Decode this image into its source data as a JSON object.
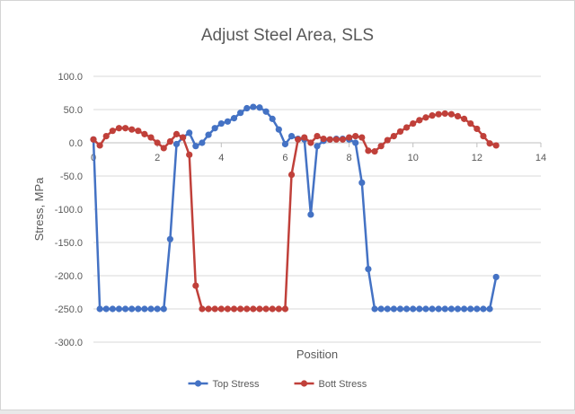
{
  "chart_data": {
    "type": "line",
    "title": "Adjust Steel Area, SLS",
    "xlabel": "Position",
    "ylabel": "Stress, MPa",
    "xlim": [
      0,
      14
    ],
    "ylim": [
      -300,
      100
    ],
    "xticks": [
      0,
      2,
      4,
      6,
      8,
      10,
      12,
      14
    ],
    "yticks": [
      100,
      50,
      0,
      -50,
      -100,
      -150,
      -200,
      -250,
      -300
    ],
    "ytick_labels": [
      "100.0",
      "50.0",
      "0.0",
      "-50.0",
      "-100.0",
      "-150.0",
      "-200.0",
      "-250.0",
      "-300.0"
    ],
    "grid": "horizontal",
    "legend": "bottom",
    "series": [
      {
        "name": "Top Stress",
        "color": "#4472c4",
        "points": [
          [
            0,
            5
          ],
          [
            0.2,
            -250
          ],
          [
            0.4,
            -250
          ],
          [
            0.6,
            -250
          ],
          [
            0.8,
            -250
          ],
          [
            1.0,
            -250
          ],
          [
            1.2,
            -250
          ],
          [
            1.4,
            -250
          ],
          [
            1.6,
            -250
          ],
          [
            1.8,
            -250
          ],
          [
            2.0,
            -250
          ],
          [
            2.2,
            -250
          ],
          [
            2.4,
            -145
          ],
          [
            2.6,
            -2
          ],
          [
            2.8,
            8
          ],
          [
            3.0,
            15
          ],
          [
            3.2,
            -5
          ],
          [
            3.4,
            0
          ],
          [
            3.6,
            12
          ],
          [
            3.8,
            22
          ],
          [
            4.0,
            29
          ],
          [
            4.2,
            32
          ],
          [
            4.4,
            37
          ],
          [
            4.6,
            45
          ],
          [
            4.8,
            52
          ],
          [
            5.0,
            54
          ],
          [
            5.2,
            53
          ],
          [
            5.4,
            47
          ],
          [
            5.6,
            36
          ],
          [
            5.8,
            20
          ],
          [
            6.0,
            -2
          ],
          [
            6.2,
            10
          ],
          [
            6.4,
            6
          ],
          [
            6.6,
            5
          ],
          [
            6.8,
            -108
          ],
          [
            7.0,
            -5
          ],
          [
            7.2,
            3
          ],
          [
            7.4,
            5
          ],
          [
            7.6,
            6
          ],
          [
            7.8,
            6
          ],
          [
            8.0,
            5
          ],
          [
            8.2,
            0
          ],
          [
            8.4,
            -60
          ],
          [
            8.6,
            -190
          ],
          [
            8.8,
            -250
          ],
          [
            9.0,
            -250
          ],
          [
            9.2,
            -250
          ],
          [
            9.4,
            -250
          ],
          [
            9.6,
            -250
          ],
          [
            9.8,
            -250
          ],
          [
            10.0,
            -250
          ],
          [
            10.2,
            -250
          ],
          [
            10.4,
            -250
          ],
          [
            10.6,
            -250
          ],
          [
            10.8,
            -250
          ],
          [
            11.0,
            -250
          ],
          [
            11.2,
            -250
          ],
          [
            11.4,
            -250
          ],
          [
            11.6,
            -250
          ],
          [
            11.8,
            -250
          ],
          [
            12.0,
            -250
          ],
          [
            12.2,
            -250
          ],
          [
            12.4,
            -250
          ],
          [
            12.6,
            -202
          ]
        ]
      },
      {
        "name": "Bott Stress",
        "color": "#c0403a",
        "points": [
          [
            0,
            5
          ],
          [
            0.2,
            -4
          ],
          [
            0.4,
            10
          ],
          [
            0.6,
            18
          ],
          [
            0.8,
            22
          ],
          [
            1.0,
            22
          ],
          [
            1.2,
            20
          ],
          [
            1.4,
            18
          ],
          [
            1.6,
            13
          ],
          [
            1.8,
            8
          ],
          [
            2.0,
            0
          ],
          [
            2.2,
            -8
          ],
          [
            2.4,
            2
          ],
          [
            2.6,
            13
          ],
          [
            2.8,
            8
          ],
          [
            3.0,
            -18
          ],
          [
            3.2,
            -215
          ],
          [
            3.4,
            -250
          ],
          [
            3.6,
            -250
          ],
          [
            3.8,
            -250
          ],
          [
            4.0,
            -250
          ],
          [
            4.2,
            -250
          ],
          [
            4.4,
            -250
          ],
          [
            4.6,
            -250
          ],
          [
            4.8,
            -250
          ],
          [
            5.0,
            -250
          ],
          [
            5.2,
            -250
          ],
          [
            5.4,
            -250
          ],
          [
            5.6,
            -250
          ],
          [
            5.8,
            -250
          ],
          [
            6.0,
            -250
          ],
          [
            6.2,
            -48
          ],
          [
            6.4,
            5
          ],
          [
            6.6,
            8
          ],
          [
            6.8,
            0
          ],
          [
            7.0,
            10
          ],
          [
            7.2,
            6
          ],
          [
            7.4,
            5
          ],
          [
            7.6,
            5
          ],
          [
            7.8,
            5
          ],
          [
            8.0,
            8
          ],
          [
            8.2,
            10
          ],
          [
            8.4,
            8
          ],
          [
            8.6,
            -12
          ],
          [
            8.8,
            -13
          ],
          [
            9.0,
            -5
          ],
          [
            9.2,
            4
          ],
          [
            9.4,
            10
          ],
          [
            9.6,
            17
          ],
          [
            9.8,
            23
          ],
          [
            10.0,
            29
          ],
          [
            10.2,
            34
          ],
          [
            10.4,
            38
          ],
          [
            10.6,
            41
          ],
          [
            10.8,
            43
          ],
          [
            11.0,
            44
          ],
          [
            11.2,
            43
          ],
          [
            11.4,
            40
          ],
          [
            11.6,
            36
          ],
          [
            11.8,
            29
          ],
          [
            12.0,
            21
          ],
          [
            12.2,
            10
          ],
          [
            12.4,
            -1
          ],
          [
            12.6,
            -4
          ]
        ]
      }
    ]
  }
}
